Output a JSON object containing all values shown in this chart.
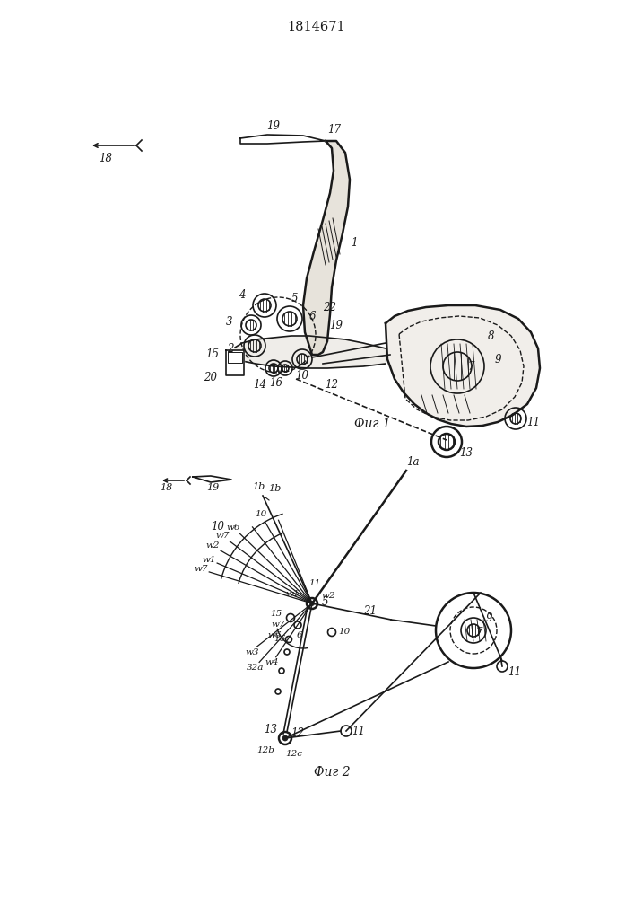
{
  "title": "1814671",
  "fig1_label": "Фиг 1",
  "fig2_label": "Фиг 2",
  "bg_color": "#ffffff",
  "line_color": "#1a1a1a"
}
